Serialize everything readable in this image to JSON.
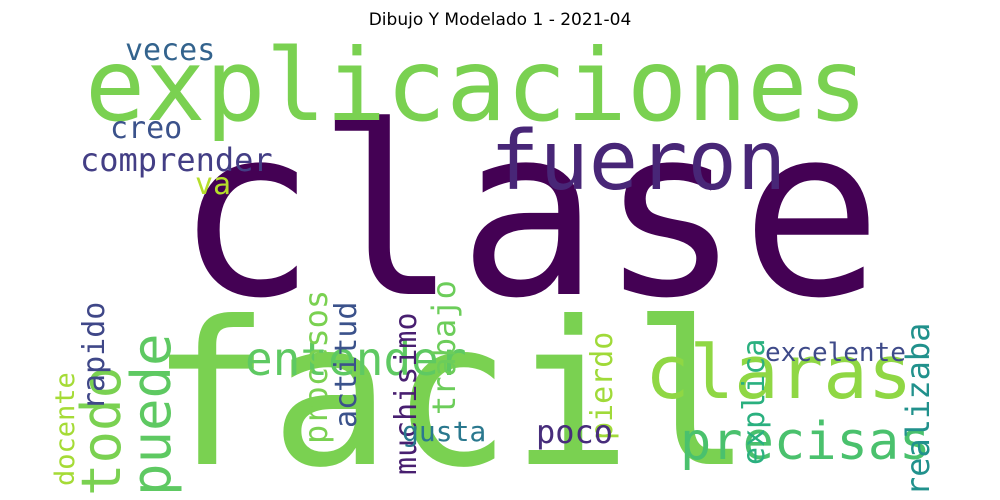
{
  "title": "Dibujo Y Modelado 1 - 2021-04",
  "words": [
    {
      "text": "clase",
      "color": "#440154"
    },
    {
      "text": "facil",
      "color": "#7ad151"
    },
    {
      "text": "explicaciones",
      "color": "#7ad151"
    },
    {
      "text": "fueron",
      "color": "#482677"
    },
    {
      "text": "claras",
      "color": "#8fd744"
    },
    {
      "text": "precisas",
      "color": "#4ac16d"
    },
    {
      "text": "entender",
      "color": "#5ec962"
    },
    {
      "text": "puede",
      "color": "#5ec962"
    },
    {
      "text": "todo",
      "color": "#7ad151"
    },
    {
      "text": "comprender",
      "color": "#433e85"
    },
    {
      "text": "veces",
      "color": "#33638d"
    },
    {
      "text": "creo",
      "color": "#3b528b"
    },
    {
      "text": "va",
      "color": "#b5de2b"
    },
    {
      "text": "rapido",
      "color": "#3f4788"
    },
    {
      "text": "docente",
      "color": "#a5db36"
    },
    {
      "text": "procesos",
      "color": "#7ad151"
    },
    {
      "text": "actitud",
      "color": "#3b528b"
    },
    {
      "text": "muchisimo",
      "color": "#481f70"
    },
    {
      "text": "trabajo",
      "color": "#6ccd5a"
    },
    {
      "text": "pierdo",
      "color": "#a0da39"
    },
    {
      "text": "explica",
      "color": "#2ab07f"
    },
    {
      "text": "realizaba",
      "color": "#21918c"
    },
    {
      "text": "excelente",
      "color": "#3e4a89"
    },
    {
      "text": "gusta",
      "color": "#2a788e"
    },
    {
      "text": "poco",
      "color": "#472d7b"
    }
  ]
}
